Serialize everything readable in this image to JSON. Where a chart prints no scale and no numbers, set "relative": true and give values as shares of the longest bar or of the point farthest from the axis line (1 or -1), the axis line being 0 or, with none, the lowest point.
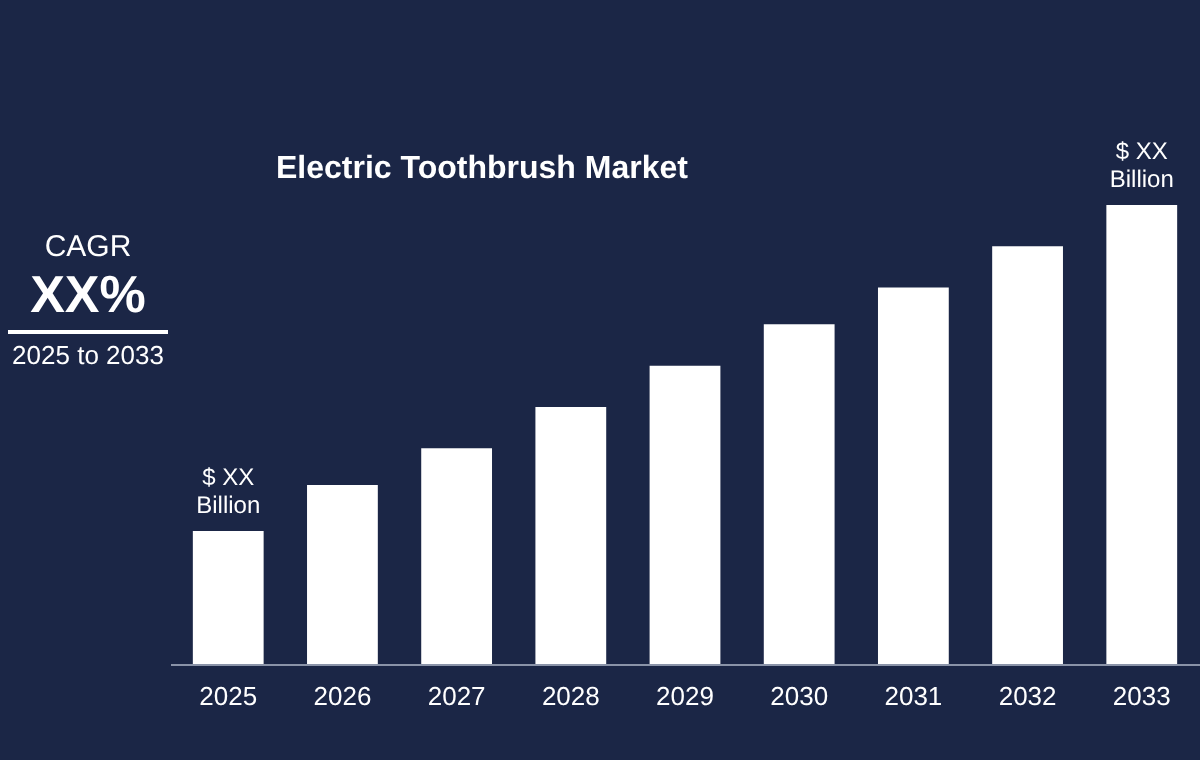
{
  "chart_data": {
    "type": "bar",
    "title": "Electric Toothbrush Market",
    "relative": true,
    "categories": [
      "2025",
      "2026",
      "2027",
      "2028",
      "2029",
      "2030",
      "2031",
      "2032",
      "2033"
    ],
    "values": [
      0.29,
      0.39,
      0.47,
      0.56,
      0.65,
      0.74,
      0.82,
      0.91,
      1
    ],
    "color": "#ffffff",
    "annotations": [
      "CAGR",
      "XX%",
      "2025 to 2033",
      {
        "text": "$ XX\nBillion",
        "x": "2025",
        "y": 0.29
      },
      {
        "text": "$ XX\nBillion",
        "x": "2033",
        "y": 1
      }
    ]
  }
}
